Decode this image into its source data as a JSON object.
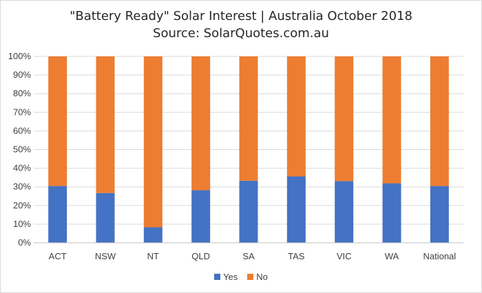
{
  "chart_data": {
    "type": "bar",
    "stacked": true,
    "title": "\"Battery Ready\" Solar Interest | Australia October 2018",
    "subtitle": "Source: SolarQuotes.com.au",
    "xlabel": "",
    "ylabel": "",
    "ylim": [
      0,
      100
    ],
    "yticks": [
      "0%",
      "10%",
      "20%",
      "30%",
      "40%",
      "50%",
      "60%",
      "70%",
      "80%",
      "90%",
      "100%"
    ],
    "categories": [
      "ACT",
      "NSW",
      "NT",
      "QLD",
      "SA",
      "TAS",
      "VIC",
      "WA",
      "National"
    ],
    "series": [
      {
        "name": "Yes",
        "color": "#4472c4",
        "values": [
          30.5,
          26.7,
          8.3,
          28.2,
          33.3,
          35.6,
          33.1,
          31.9,
          30.5
        ]
      },
      {
        "name": "No",
        "color": "#ed7d31",
        "values": [
          69.5,
          73.3,
          91.7,
          71.8,
          66.7,
          64.4,
          66.9,
          68.1,
          69.5
        ]
      }
    ],
    "grid": true,
    "legend_position": "bottom"
  }
}
